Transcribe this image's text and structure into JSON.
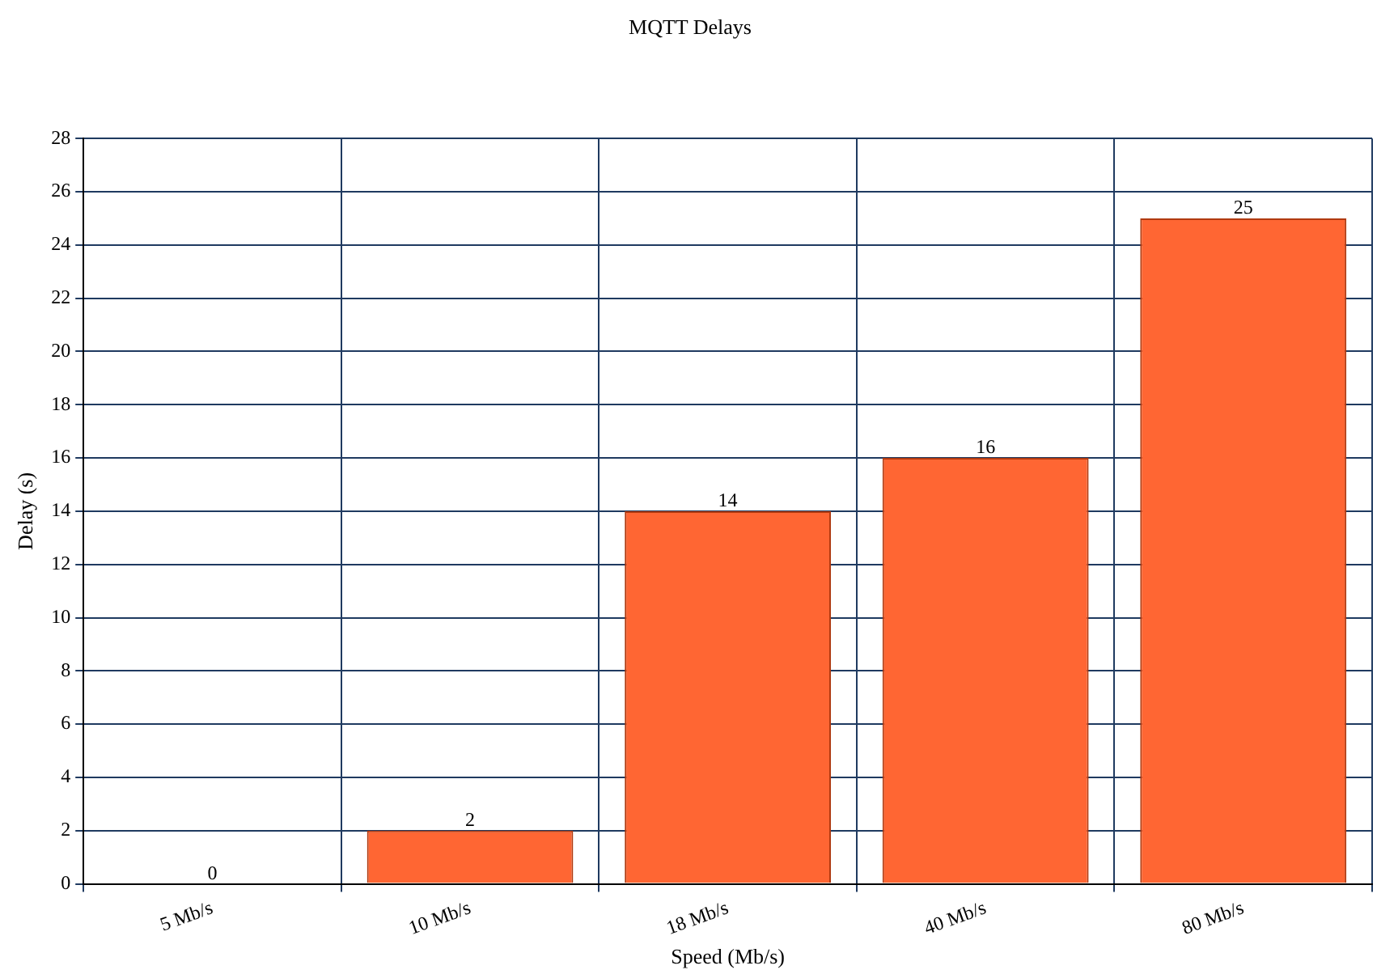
{
  "chart_data": {
    "type": "bar",
    "title": "MQTT Delays",
    "xlabel": "Speed (Mb/s)",
    "ylabel": "Delay (s)",
    "categories": [
      "5 Mb/s",
      "10 Mb/s",
      "18 Mb/s",
      "40 Mb/s",
      "80 Mb/s"
    ],
    "values": [
      0,
      2,
      14,
      16,
      25
    ],
    "color": "#ff6633",
    "ylim": [
      0,
      28
    ],
    "yticks": [
      0,
      2,
      4,
      6,
      8,
      10,
      12,
      14,
      16,
      18,
      20,
      22,
      24,
      26,
      28
    ],
    "grid": true,
    "data_labels": true
  }
}
